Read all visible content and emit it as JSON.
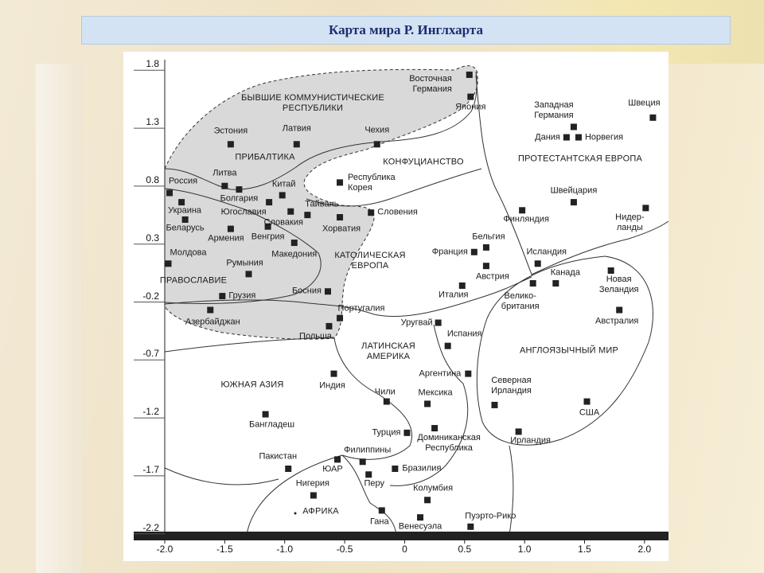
{
  "title": "Карта мира Р. Инглхарта",
  "chart_data": {
    "type": "scatter",
    "labels": [
      "Эстония",
      "Латвия",
      "Чехия",
      "Восточная\nГермания",
      "Япония",
      "Западная\nГермания",
      "Дания",
      "Норвегия",
      "Швеция",
      "Литва",
      "Китай",
      "Республика\nКорея",
      "Россия",
      "Болгария",
      "Украина",
      "Югославия",
      "Тайвань",
      "Словакия",
      "Хорватия",
      "Словения",
      "Беларусь",
      "Армения",
      "Венгрия",
      "Македония",
      "Молдова",
      "Румыния",
      "Грузия",
      "Азербайджан",
      "Босния",
      "Португалия",
      "Польша",
      "Финляндия",
      "Швейцария",
      "Нидер-\nланды",
      "Франция",
      "Бельгия",
      "Австрия",
      "Исландия",
      "Италия",
      "Велико-\nбритания",
      "Канада",
      "Новая\nЗеландия",
      "Австралия",
      "Уругвай",
      "Испания",
      "Аргентина",
      "Индия",
      "Северная\nИрландия",
      "США",
      "Чили",
      "Мексика",
      "Бангладеш",
      "Турция",
      "Доминиканская\nРеспублика",
      "Ирландия",
      "Пакистан",
      "ЮАР",
      "Филиппины",
      "Бразилия",
      "Перу",
      "Нигерия",
      "Колумбия",
      "Гана",
      "Венесуэла",
      "Пуэрто-Рико"
    ],
    "x": [
      -1.45,
      -0.9,
      -0.23,
      0.54,
      0.55,
      1.41,
      1.35,
      1.45,
      2.07,
      -1.5,
      -1.02,
      -0.54,
      -1.96,
      -1.38,
      -1.86,
      -1.13,
      -0.81,
      -0.95,
      -0.54,
      -0.28,
      -1.83,
      -1.45,
      -1.14,
      -0.92,
      -1.97,
      -1.3,
      -1.52,
      -1.62,
      -0.64,
      -0.54,
      -0.63,
      0.98,
      1.41,
      2.01,
      0.58,
      0.68,
      0.68,
      1.11,
      0.48,
      1.07,
      1.26,
      1.72,
      1.79,
      0.28,
      0.36,
      0.53,
      -0.59,
      0.75,
      1.52,
      -0.15,
      0.19,
      -1.16,
      0.02,
      0.25,
      0.95,
      -0.97,
      -0.56,
      -0.35,
      -0.08,
      -0.3,
      -0.76,
      0.19,
      -0.19,
      0.13,
      0.55
    ],
    "values": [
      1.12,
      1.12,
      1.12,
      1.72,
      1.53,
      1.27,
      1.18,
      1.18,
      1.35,
      0.76,
      0.68,
      0.79,
      0.7,
      0.73,
      0.62,
      0.62,
      0.51,
      0.54,
      0.49,
      0.53,
      0.47,
      0.39,
      0.41,
      0.27,
      0.09,
      0.0,
      -0.19,
      -0.31,
      -0.15,
      -0.38,
      -0.45,
      0.55,
      0.62,
      0.57,
      0.19,
      0.23,
      0.07,
      0.09,
      -0.1,
      -0.08,
      -0.08,
      0.03,
      -0.31,
      -0.42,
      -0.62,
      -0.86,
      -0.86,
      -1.13,
      -1.1,
      -1.1,
      -1.12,
      -1.21,
      -1.37,
      -1.33,
      -1.36,
      -1.68,
      -1.6,
      -1.62,
      -1.68,
      -1.73,
      -1.91,
      -1.95,
      -2.04,
      -2.1,
      -2.18
    ],
    "annotations": [
      "БЫВШИЕ КОММУНИСТИЧЕСКИЕ\nРЕСПУБЛИКИ",
      "ПРИБАЛТИКА",
      "КОНФУЦИАНСТВО",
      "ПРОТЕСТАНТСКАЯ ЕВРОПА",
      "КАТОЛИЧЕСКАЯ\nЕВРОПА",
      "ПРАВОСЛАВИЕ",
      "ЛАТИНСКАЯ\nАМЕРИКА",
      "АНГЛОЯЗЫЧНЫЙ МИР",
      "ЮЖНАЯ АЗИЯ",
      "АФРИКА"
    ],
    "color": "#222222",
    "xlim": [
      -2.0,
      2.2
    ],
    "ylim": [
      -2.25,
      1.85
    ],
    "xticks": [
      {
        "value": -2.0,
        "label": "-2.0"
      },
      -1.5,
      {
        "value": -1.0,
        "label": "-1.0"
      },
      -0.5,
      0,
      0.5,
      {
        "value": 1.0,
        "label": "1.0"
      },
      1.5,
      {
        "value": 2.0,
        "label": "2.0"
      }
    ],
    "yticks": [
      1.8,
      1.3,
      0.8,
      0.3,
      -0.2,
      -0.7,
      -1.2,
      -1.7,
      -2.2
    ]
  }
}
